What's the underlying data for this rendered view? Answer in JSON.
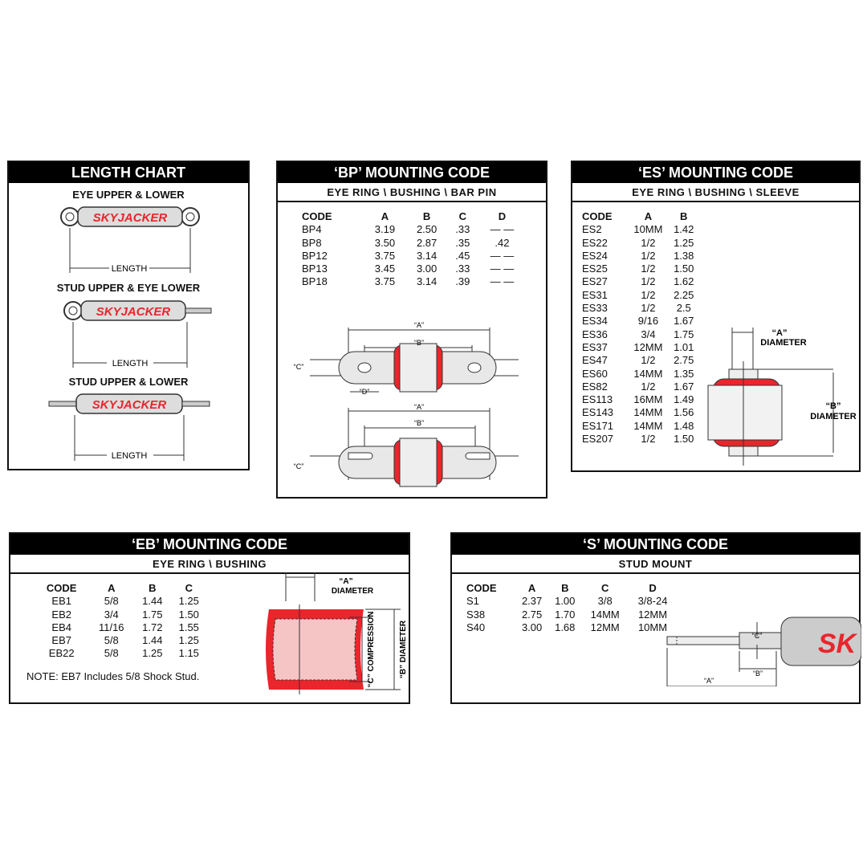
{
  "length_chart": {
    "title": "LENGTH CHART",
    "sections": [
      "EYE UPPER & LOWER",
      "STUD UPPER & EYE LOWER",
      "STUD UPPER & LOWER"
    ],
    "dim_label": "LENGTH",
    "logo": "SKYJACKER"
  },
  "bp": {
    "title": "‘BP’ MOUNTING CODE",
    "subtitle": "EYE RING \\ BUSHING \\ BAR PIN",
    "headers": [
      "CODE",
      "A",
      "B",
      "C",
      "D"
    ],
    "rows": [
      [
        "BP4",
        "3.19",
        "2.50",
        ".33",
        "— —"
      ],
      [
        "BP8",
        "3.50",
        "2.87",
        ".35",
        ".42"
      ],
      [
        "BP12",
        "3.75",
        "3.14",
        ".45",
        "— —"
      ],
      [
        "BP13",
        "3.45",
        "3.00",
        ".33",
        "— —"
      ],
      [
        "BP18",
        "3.75",
        "3.14",
        ".39",
        "— —"
      ]
    ],
    "labels": {
      "a": "“A”",
      "b": "“B”",
      "c": "“C”",
      "d": "“D”"
    }
  },
  "es": {
    "title": "‘ES’ MOUNTING CODE",
    "subtitle": "EYE RING \\ BUSHING \\ SLEEVE",
    "headers": [
      "CODE",
      "A",
      "B"
    ],
    "rows": [
      [
        "ES2",
        "10MM",
        "1.42"
      ],
      [
        "ES22",
        "1/2",
        "1.25"
      ],
      [
        "ES24",
        "1/2",
        "1.38"
      ],
      [
        "ES25",
        "1/2",
        "1.50"
      ],
      [
        "ES27",
        "1/2",
        "1.62"
      ],
      [
        "ES31",
        "1/2",
        "2.25"
      ],
      [
        "ES33",
        "1/2",
        "2.5"
      ],
      [
        "ES34",
        "9/16",
        "1.67"
      ],
      [
        "ES36",
        "3/4",
        "1.75"
      ],
      [
        "ES37",
        "12MM",
        "1.01"
      ],
      [
        "ES47",
        "1/2",
        "2.75"
      ],
      [
        "ES60",
        "14MM",
        "1.35"
      ],
      [
        "ES82",
        "1/2",
        "1.67"
      ],
      [
        "ES113",
        "16MM",
        "1.49"
      ],
      [
        "ES143",
        "14MM",
        "1.56"
      ],
      [
        "ES171",
        "14MM",
        "1.48"
      ],
      [
        "ES207",
        "1/2",
        "1.50"
      ]
    ],
    "labels": {
      "a": "“A”",
      "a2": "DIAMETER",
      "b": "“B”",
      "b2": "DIAMETER"
    }
  },
  "eb": {
    "title": "‘EB’ MOUNTING CODE",
    "subtitle": "EYE RING \\ BUSHING",
    "headers": [
      "CODE",
      "A",
      "B",
      "C"
    ],
    "rows": [
      [
        "EB1",
        "5/8",
        "1.44",
        "1.25"
      ],
      [
        "EB2",
        "3/4",
        "1.75",
        "1.50"
      ],
      [
        "EB4",
        "11/16",
        "1.72",
        "1.55"
      ],
      [
        "EB7",
        "5/8",
        "1.44",
        "1.25"
      ],
      [
        "EB22",
        "5/8",
        "1.25",
        "1.15"
      ]
    ],
    "note": "NOTE: EB7 Includes 5/8 Shock Stud.",
    "labels": {
      "a": "“A”",
      "a2": "DIAMETER",
      "c": "“C” COMPRESSION",
      "b": "“B” DIAMETER"
    }
  },
  "s": {
    "title": "‘S’ MOUNTING CODE",
    "subtitle": "STUD MOUNT",
    "headers": [
      "CODE",
      "A",
      "B",
      "C",
      "D"
    ],
    "rows": [
      [
        "S1",
        "2.37",
        "1.00",
        "3/8",
        "3/8-24"
      ],
      [
        "S38",
        "2.75",
        "1.70",
        "14MM",
        "12MM"
      ],
      [
        "S40",
        "3.00",
        "1.68",
        "12MM",
        "10MM"
      ]
    ],
    "labels": {
      "a": "“A”",
      "b": "“B”",
      "c": "“C”"
    },
    "logo": "SK"
  },
  "colors": {
    "red": "#e8262b",
    "black": "#000000",
    "silver": "#c8c8c8"
  }
}
